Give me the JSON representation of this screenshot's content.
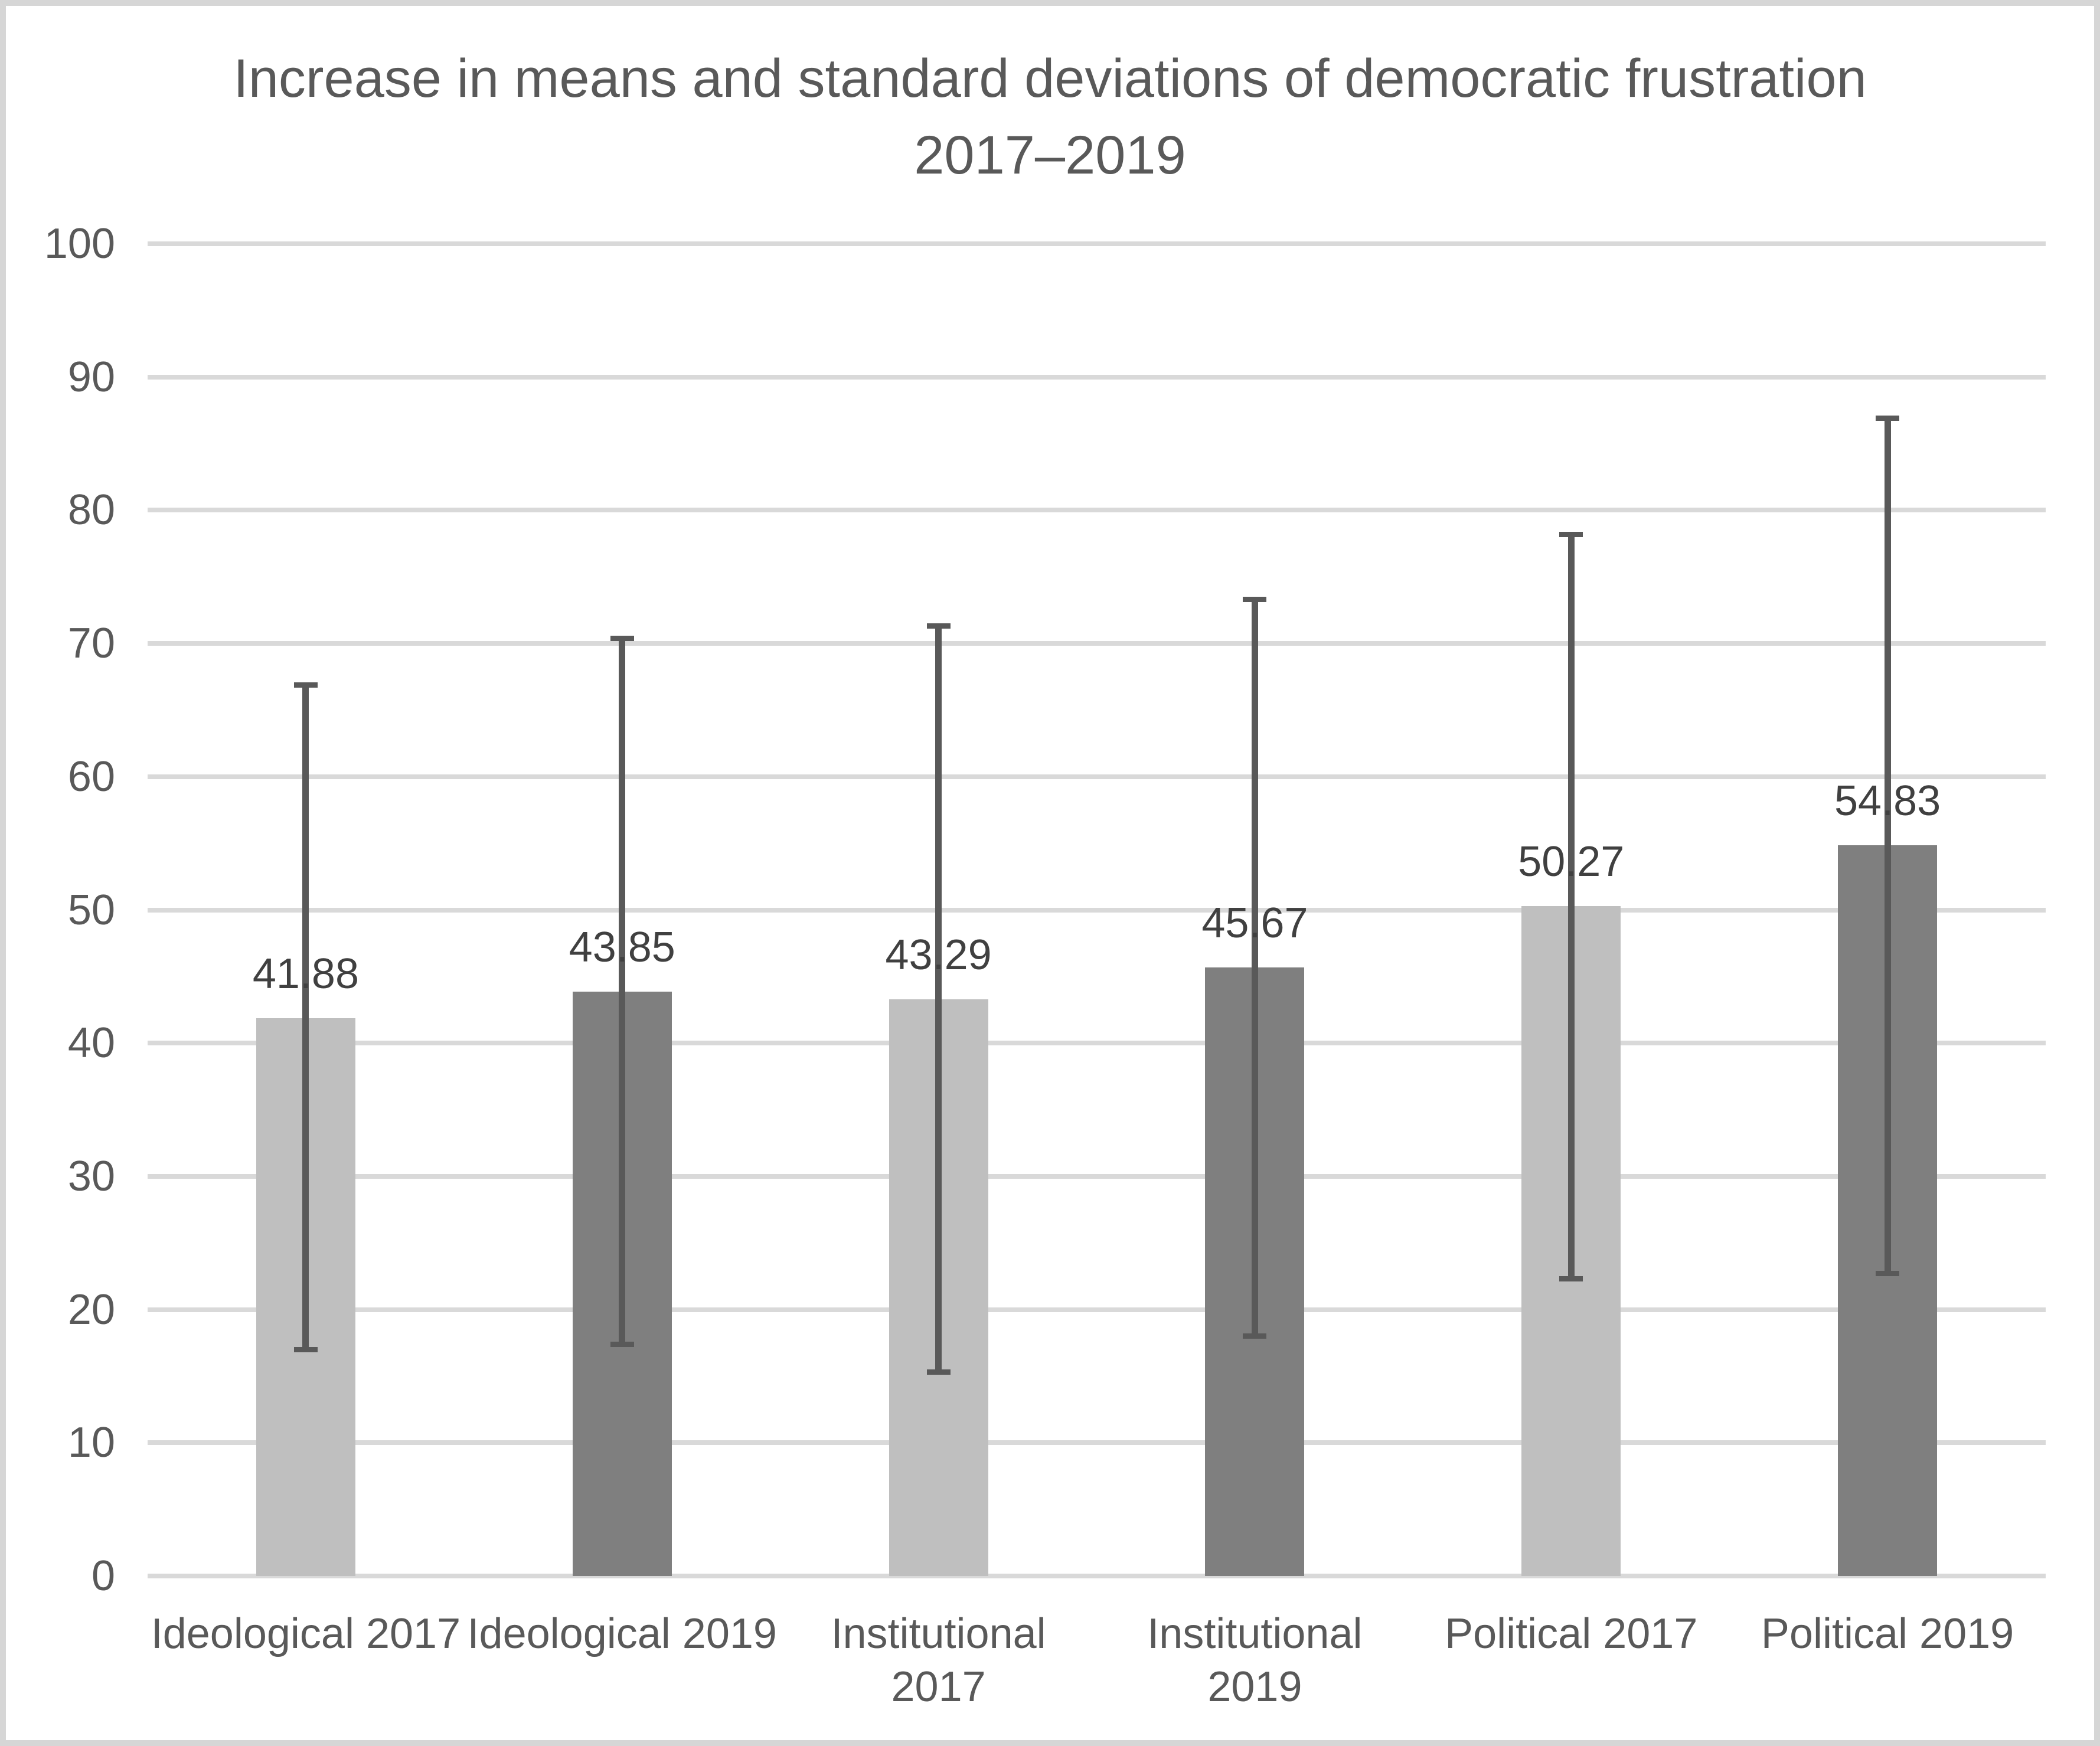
{
  "figure": {
    "title_line1": "Increase in means and standard deviations of democratic frustration",
    "title_line2": "2017–2019"
  },
  "chart_data": {
    "type": "bar",
    "title": "Increase in means and standard deviations of democratic frustration 2017–2019",
    "xlabel": "",
    "ylabel": "",
    "categories": [
      "Ideological 2017",
      "Ideological 2019",
      "Institutional\n2017",
      "Institutional\n2019",
      "Political 2017",
      "Political 2019"
    ],
    "values": [
      41.88,
      43.85,
      43.29,
      45.67,
      50.27,
      54.83
    ],
    "data_labels": [
      "41.88",
      "43.85",
      "43.29",
      "45.67",
      "50.27",
      "54.83"
    ],
    "bar_shades": [
      "light",
      "dark",
      "light",
      "dark",
      "light",
      "dark"
    ],
    "error_bars": {
      "top": [
        66.9,
        70.4,
        71.3,
        73.3,
        78.2,
        86.9
      ],
      "bottom": [
        17.0,
        17.4,
        15.3,
        18.0,
        22.3,
        22.7
      ]
    },
    "ylim": [
      0,
      100
    ],
    "yticks": [
      0,
      10,
      20,
      30,
      40,
      50,
      60,
      70,
      80,
      90,
      100
    ],
    "grid": true,
    "legend": false
  },
  "colors": {
    "background": "#FFFFFF",
    "border": "#D6D6D6",
    "bar_light": "#BFBFBF",
    "bar_dark": "#7F7F7F",
    "error_bar": "#595959",
    "gridline": "#D9D9D9",
    "axis_text": "#595959",
    "title_text": "#595959",
    "data_label_text": "#404040"
  }
}
